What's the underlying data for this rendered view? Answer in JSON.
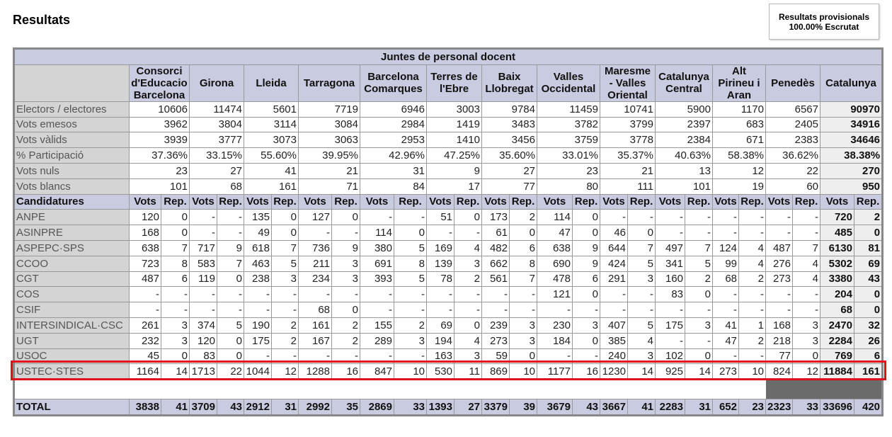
{
  "header": {
    "title": "Resultats",
    "status": [
      "Resultats provisionals",
      "100.00% Escrutat"
    ]
  },
  "table": {
    "title": "Juntes de personal docent",
    "regions": [
      "Consorci d'Educacio Barcelona",
      "Girona",
      "Lleida",
      "Tarragona",
      "Barcelona Comarques",
      "Terres de l'Ebre",
      "Baix Llobregat",
      "Valles Occidental",
      "Maresme - Valles Oriental",
      "Catalunya Central",
      "Alt Pirineu i Aran",
      "Penedès",
      "Catalunya"
    ],
    "summary": [
      {
        "label": "Electors / electores",
        "values": [
          10606,
          11474,
          5601,
          7719,
          6946,
          3003,
          9784,
          11459,
          10741,
          5900,
          1170,
          6567,
          90970
        ]
      },
      {
        "label": "Vots emesos",
        "values": [
          3962,
          3804,
          3114,
          3084,
          2984,
          1419,
          3483,
          3782,
          3799,
          2397,
          683,
          2405,
          34916
        ]
      },
      {
        "label": "Vots vàlids",
        "values": [
          3939,
          3777,
          3073,
          3063,
          2953,
          1410,
          3456,
          3759,
          3778,
          2384,
          671,
          2383,
          34646
        ]
      },
      {
        "label": "% Participació",
        "values": [
          "37.36%",
          "33.15%",
          "55.60%",
          "39.95%",
          "42.96%",
          "47.25%",
          "35.60%",
          "33.01%",
          "35.37%",
          "40.63%",
          "58.38%",
          "36.62%",
          "38.38%"
        ]
      },
      {
        "label": "Vots nuls",
        "values": [
          23,
          27,
          41,
          21,
          31,
          9,
          27,
          23,
          21,
          13,
          12,
          22,
          270
        ]
      },
      {
        "label": "Vots blancs",
        "values": [
          101,
          68,
          161,
          71,
          84,
          17,
          77,
          80,
          111,
          101,
          19,
          60,
          950
        ]
      }
    ],
    "candidatures_header": {
      "label": "Candidatures",
      "vots": "Vots",
      "rep": "Rep."
    },
    "rows": [
      {
        "label": "ANPE",
        "values": [
          120,
          0,
          "-",
          "-",
          135,
          0,
          127,
          0,
          "-",
          "-",
          51,
          0,
          173,
          2,
          114,
          0,
          "-",
          "-",
          "-",
          "-",
          "-",
          "-",
          "-",
          "-",
          720,
          2
        ]
      },
      {
        "label": "ASINPRE",
        "values": [
          168,
          0,
          "-",
          "-",
          49,
          0,
          "-",
          "-",
          114,
          0,
          "-",
          "-",
          61,
          0,
          47,
          0,
          46,
          0,
          "-",
          "-",
          "-",
          "-",
          "-",
          "-",
          485,
          0
        ]
      },
      {
        "label": "ASPEPC·SPS",
        "values": [
          638,
          7,
          717,
          9,
          618,
          7,
          736,
          9,
          380,
          5,
          169,
          4,
          482,
          6,
          638,
          9,
          644,
          7,
          497,
          7,
          124,
          4,
          487,
          7,
          6130,
          81
        ]
      },
      {
        "label": "CCOO",
        "values": [
          723,
          8,
          583,
          7,
          463,
          5,
          211,
          3,
          691,
          8,
          139,
          3,
          662,
          8,
          690,
          9,
          424,
          5,
          341,
          5,
          99,
          4,
          276,
          4,
          5302,
          69
        ]
      },
      {
        "label": "CGT",
        "values": [
          487,
          6,
          119,
          0,
          238,
          3,
          234,
          3,
          393,
          5,
          78,
          2,
          561,
          7,
          478,
          6,
          291,
          3,
          160,
          2,
          68,
          2,
          273,
          4,
          3380,
          43
        ]
      },
      {
        "label": "COS",
        "values": [
          "-",
          "-",
          "-",
          "-",
          "-",
          "-",
          "-",
          "-",
          "-",
          "-",
          "-",
          "-",
          "-",
          "-",
          121,
          0,
          "-",
          "-",
          83,
          0,
          "-",
          "-",
          "-",
          "-",
          204,
          0
        ]
      },
      {
        "label": "CSIF",
        "values": [
          "-",
          "-",
          "-",
          "-",
          "-",
          "-",
          68,
          0,
          "-",
          "-",
          "-",
          "-",
          "-",
          "-",
          "-",
          "-",
          "-",
          "-",
          "-",
          "-",
          "-",
          "-",
          "-",
          "-",
          68,
          0
        ]
      },
      {
        "label": "INTERSINDICAL·CSC",
        "values": [
          261,
          3,
          374,
          5,
          190,
          2,
          161,
          2,
          155,
          2,
          69,
          0,
          239,
          3,
          230,
          3,
          407,
          5,
          175,
          3,
          41,
          1,
          168,
          3,
          2470,
          32
        ]
      },
      {
        "label": "UGT",
        "values": [
          232,
          3,
          120,
          0,
          175,
          2,
          167,
          2,
          289,
          3,
          194,
          4,
          273,
          3,
          184,
          0,
          385,
          4,
          "-",
          "-",
          47,
          2,
          218,
          3,
          2284,
          26
        ]
      },
      {
        "label": "USOC",
        "values": [
          45,
          0,
          83,
          0,
          "-",
          "-",
          "-",
          "-",
          "-",
          "-",
          163,
          3,
          59,
          0,
          "-",
          "-",
          240,
          3,
          102,
          0,
          "-",
          "-",
          77,
          0,
          769,
          6
        ]
      },
      {
        "label": "USTEC·STES",
        "values": [
          1164,
          14,
          1713,
          22,
          1044,
          12,
          1288,
          16,
          847,
          10,
          530,
          11,
          869,
          10,
          1177,
          16,
          1230,
          14,
          925,
          14,
          273,
          10,
          824,
          12,
          11884,
          161
        ]
      }
    ],
    "total": {
      "label": "TOTAL",
      "values": [
        3838,
        41,
        3709,
        43,
        2912,
        31,
        2992,
        35,
        2869,
        33,
        1393,
        27,
        3379,
        39,
        3679,
        43,
        3667,
        41,
        2283,
        31,
        652,
        23,
        2323,
        33,
        33696,
        420
      ]
    }
  }
}
